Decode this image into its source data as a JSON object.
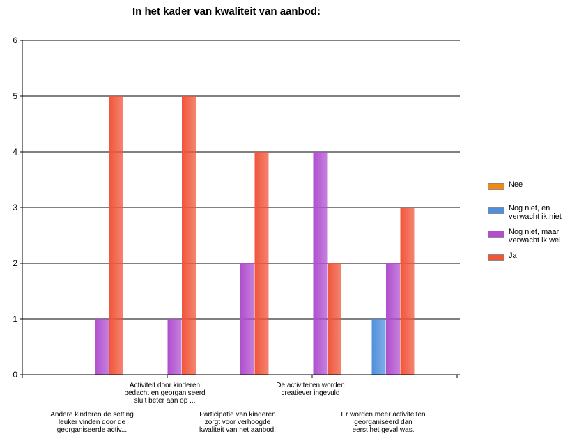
{
  "chart_data": {
    "type": "bar",
    "title": "In het kader van kwaliteit van aanbod:",
    "categories": [
      "Andere kinderen de setting leuker vinden door de georganiseerde activ...",
      "Activiteit door kinderen bedacht en georganiseerd sluit beter aan op ...",
      "Participatie van kinderen zorgt voor verhoogde kwaliteit van het aanbod.",
      "De activiteiten worden creatiever ingevuld",
      "Er worden meer activiteiten georganiseerd dan eerst het geval was."
    ],
    "category_label_lines": [
      [
        "Andere kinderen de setting",
        "leuker vinden door de",
        "georganiseerde activ..."
      ],
      [
        "Activiteit door kinderen",
        "bedacht en georganiseerd",
        "sluit beter aan op ..."
      ],
      [
        "Participatie van kinderen",
        "zorgt voor verhoogde",
        "kwaliteit van het aanbod."
      ],
      [
        "De activiteiten worden",
        "creatiever ingevuld"
      ],
      [
        "Er worden meer activiteiten",
        "georganiseerd dan",
        "eerst het geval was."
      ]
    ],
    "series": [
      {
        "name": "Nee",
        "color": "#f08a14",
        "values": [
          0,
          0,
          0,
          0,
          0
        ]
      },
      {
        "name": "Nog niet, en verwacht ik niet",
        "color": "#4f8fdc",
        "values": [
          0,
          0,
          0,
          0,
          1
        ]
      },
      {
        "name": "Nog niet, maar verwacht ik wel",
        "color": "#b04fcf",
        "values": [
          1,
          1,
          2,
          4,
          2
        ]
      },
      {
        "name": "Ja",
        "color": "#f0553a",
        "values": [
          5,
          5,
          4,
          2,
          3
        ]
      }
    ],
    "legend_lines": [
      [
        "Nee"
      ],
      [
        "Nog niet, en",
        "verwacht ik niet"
      ],
      [
        "Nog niet, maar",
        "verwacht ik wel"
      ],
      [
        "Ja"
      ]
    ],
    "y_ticks": [
      "0",
      "1",
      "2",
      "3",
      "4",
      "5",
      "6"
    ],
    "ylim": [
      0,
      6
    ],
    "xlabel": "",
    "ylabel": "",
    "grid": true,
    "legend_position": "right"
  }
}
